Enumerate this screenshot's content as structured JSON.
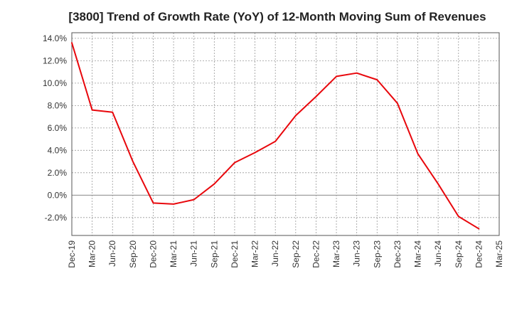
{
  "chart_data": {
    "type": "line",
    "title": "[3800]  Trend of Growth Rate (YoY) of 12-Month Moving Sum of Revenues",
    "xlabel": "",
    "ylabel": "",
    "categories": [
      "Dec-19",
      "Mar-20",
      "Jun-20",
      "Sep-20",
      "Dec-20",
      "Mar-21",
      "Jun-21",
      "Sep-21",
      "Dec-21",
      "Mar-22",
      "Jun-22",
      "Sep-22",
      "Dec-22",
      "Mar-23",
      "Jun-23",
      "Sep-23",
      "Dec-23",
      "Mar-24",
      "Jun-24",
      "Sep-24",
      "Dec-24",
      "Mar-25"
    ],
    "series": [
      {
        "values": [
          13.6,
          7.6,
          7.4,
          3.0,
          -0.7,
          -0.8,
          -0.4,
          1.0,
          2.9,
          3.8,
          4.8,
          7.1,
          8.8,
          10.6,
          10.9,
          10.3,
          8.2,
          3.7,
          1.0,
          -1.9,
          -3.0,
          null
        ]
      }
    ],
    "ylim": [
      -3.6,
      14.5
    ],
    "yticks": [
      -2,
      0,
      2,
      4,
      6,
      8,
      10,
      12,
      14
    ],
    "ytick_labels": [
      "-2.0%",
      "0.0%",
      "2.0%",
      "4.0%",
      "6.0%",
      "8.0%",
      "10.0%",
      "12.0%",
      "14.0%"
    ],
    "grid": true,
    "legend": "none",
    "colors": {
      "line": "#e8070c",
      "grid": "#999999",
      "zero_line": "#888888",
      "axis": "#555555"
    }
  }
}
